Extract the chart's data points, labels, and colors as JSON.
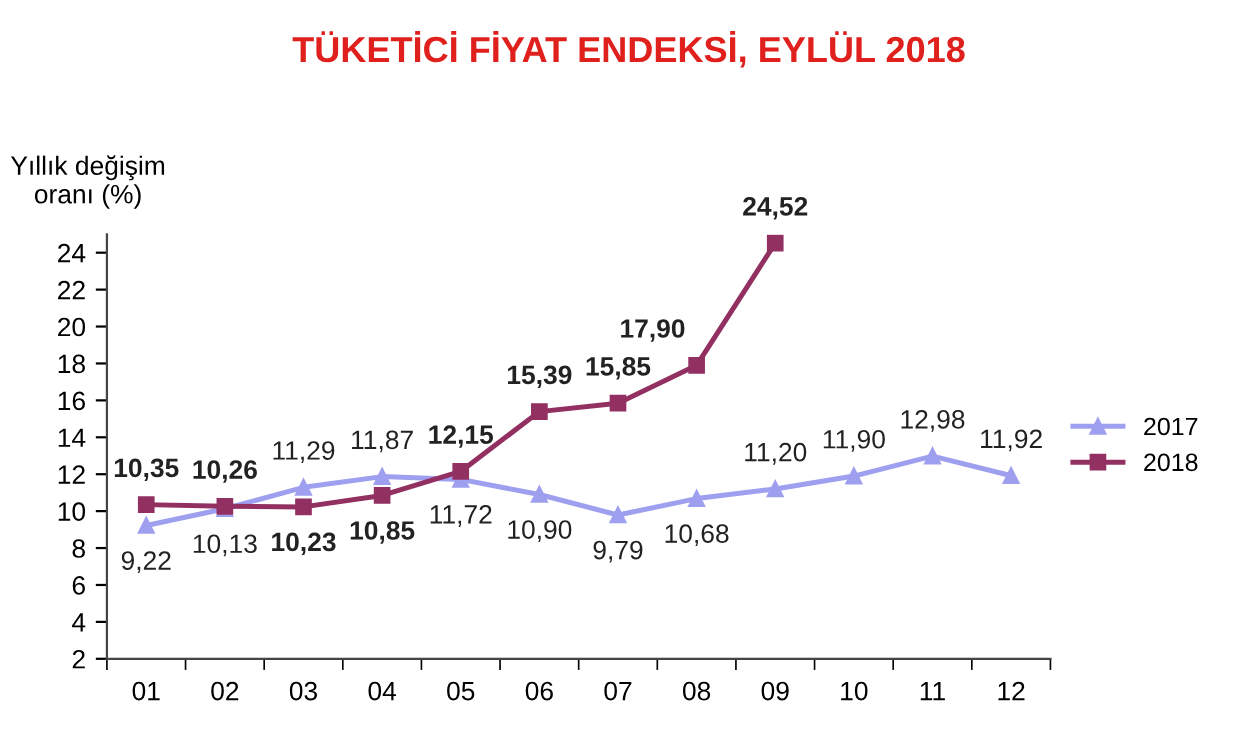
{
  "chart_data": {
    "type": "line",
    "title": "TÜKETİCİ FİYAT ENDEKSİ, EYLÜL 2018",
    "ylabel": "Yıllık değişim\noranı (%)",
    "categories": [
      "01",
      "02",
      "03",
      "04",
      "05",
      "06",
      "07",
      "08",
      "09",
      "10",
      "11",
      "12"
    ],
    "series": [
      {
        "name": "2017",
        "color": "#9f9ff0",
        "marker": "triangle",
        "values": [
          9.22,
          10.13,
          11.29,
          11.87,
          11.72,
          10.9,
          9.79,
          10.68,
          11.2,
          11.9,
          12.98,
          11.92
        ],
        "value_labels": [
          "9,22",
          "10,13",
          "11,29",
          "11,87",
          "11,72",
          "10,90",
          "9,79",
          "10,68",
          "11,20",
          "11,90",
          "12,98",
          "11,92"
        ]
      },
      {
        "name": "2018",
        "color": "#933062",
        "marker": "square",
        "values": [
          10.35,
          10.26,
          10.23,
          10.85,
          12.15,
          15.39,
          15.85,
          17.9,
          24.52,
          null,
          null,
          null
        ],
        "value_labels": [
          "10,35",
          "10,26",
          "10,23",
          "10,85",
          "12,15",
          "15,39",
          "15,85",
          "17,90",
          "24,52",
          null,
          null,
          null
        ]
      }
    ],
    "ylim": [
      2,
      25
    ],
    "yticks": [
      2,
      4,
      6,
      8,
      10,
      12,
      14,
      16,
      18,
      20,
      22,
      24
    ],
    "grid": false,
    "legend": "right",
    "line_style": "solid"
  }
}
